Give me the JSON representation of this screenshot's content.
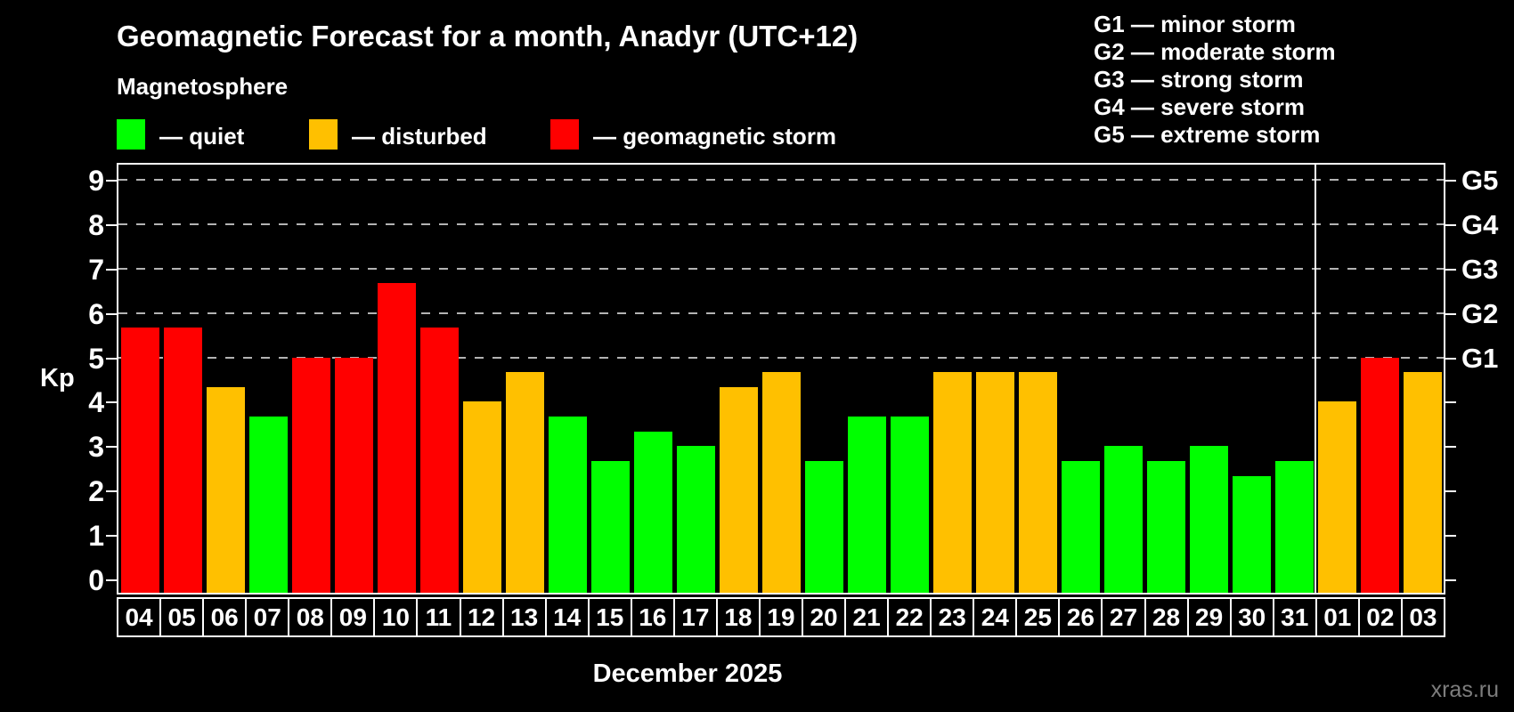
{
  "title": "Geomagnetic Forecast for a month, Anadyr (UTC+12)",
  "subtitle": "Magnetosphere",
  "legend": {
    "quiet_label": "— quiet",
    "disturbed_label": "— disturbed",
    "storm_label": "— geomagnetic storm"
  },
  "g_legend": {
    "g1": "G1 — minor storm",
    "g2": "G2 — moderate storm",
    "g3": "G3 — strong storm",
    "g4": "G4 — severe storm",
    "g5": "G5 — extreme storm"
  },
  "axis": {
    "ylabel": "Kp",
    "kp_ticks": [
      "0",
      "1",
      "2",
      "3",
      "4",
      "5",
      "6",
      "7",
      "8",
      "9"
    ],
    "g_ticks": [
      {
        "label": "G1",
        "kp": 5
      },
      {
        "label": "G2",
        "kp": 6
      },
      {
        "label": "G3",
        "kp": 7
      },
      {
        "label": "G4",
        "kp": 8
      },
      {
        "label": "G5",
        "kp": 9
      }
    ]
  },
  "xlabel": "December 2025",
  "watermark": "xras.ru",
  "chart_data": {
    "type": "bar",
    "title": "Geomagnetic Forecast for a month, Anadyr (UTC+12)",
    "ylabel": "Kp",
    "ylim": [
      0,
      9.4
    ],
    "grid": "dashed horizontal at Kp 5-9 (G1-G5)",
    "legend_position": "top",
    "categories": [
      "04",
      "05",
      "06",
      "07",
      "08",
      "09",
      "10",
      "11",
      "12",
      "13",
      "14",
      "15",
      "16",
      "17",
      "18",
      "19",
      "20",
      "21",
      "22",
      "23",
      "24",
      "25",
      "26",
      "27",
      "28",
      "29",
      "30",
      "31",
      "01",
      "02",
      "03"
    ],
    "values": [
      5.67,
      5.67,
      4.33,
      3.67,
      5.0,
      5.0,
      6.67,
      5.67,
      4.0,
      4.67,
      3.67,
      2.67,
      3.33,
      3.0,
      4.33,
      4.67,
      2.67,
      3.67,
      3.67,
      4.67,
      4.67,
      4.67,
      2.67,
      3.0,
      2.67,
      3.0,
      2.33,
      2.67,
      4.0,
      5.0,
      4.67
    ],
    "statuses": [
      "storm",
      "storm",
      "disturbed",
      "quiet",
      "storm",
      "storm",
      "storm",
      "storm",
      "disturbed",
      "disturbed",
      "quiet",
      "quiet",
      "quiet",
      "quiet",
      "disturbed",
      "disturbed",
      "quiet",
      "quiet",
      "quiet",
      "disturbed",
      "disturbed",
      "disturbed",
      "quiet",
      "quiet",
      "quiet",
      "quiet",
      "quiet",
      "quiet",
      "disturbed",
      "storm",
      "disturbed"
    ],
    "palette": {
      "quiet": "#00ff00",
      "disturbed": "#ffc000",
      "storm": "#ff0000"
    },
    "gridlines_at_kp": [
      5,
      6,
      7,
      8,
      9
    ],
    "month_separator_after": 28
  }
}
